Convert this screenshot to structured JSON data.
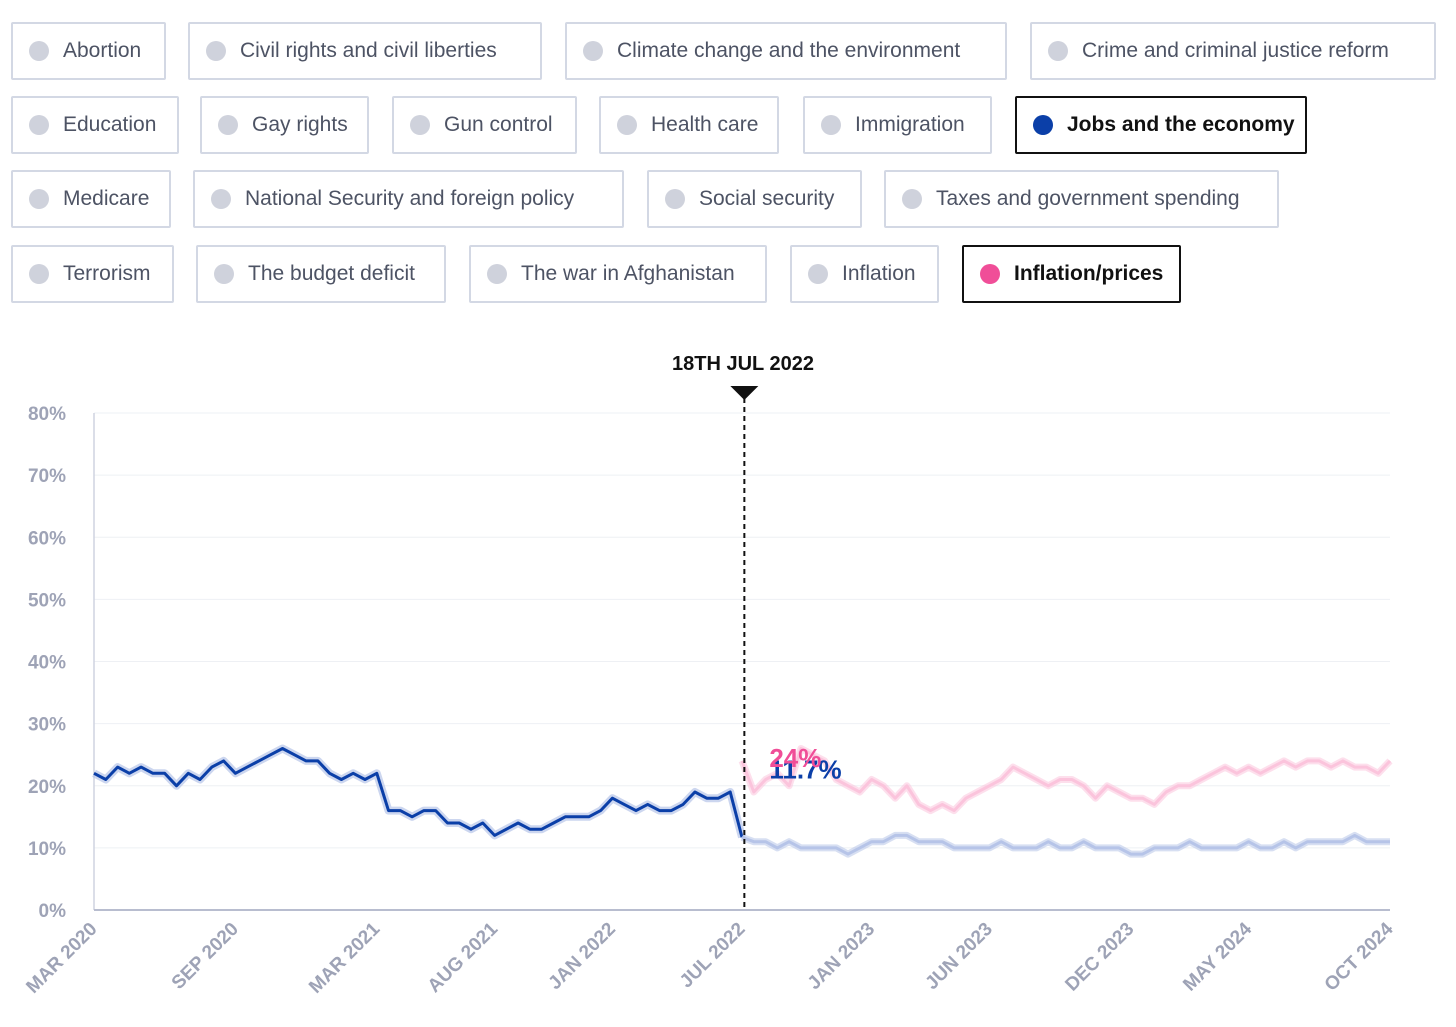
{
  "filters": [
    {
      "label": "Abortion",
      "active": false
    },
    {
      "label": "Civil rights and civil liberties",
      "active": false
    },
    {
      "label": "Climate change and the environment",
      "active": false
    },
    {
      "label": "Crime and criminal justice reform",
      "active": false
    },
    {
      "label": "Education",
      "active": false
    },
    {
      "label": "Gay rights",
      "active": false
    },
    {
      "label": "Gun control",
      "active": false
    },
    {
      "label": "Health care",
      "active": false
    },
    {
      "label": "Immigration",
      "active": false
    },
    {
      "label": "Jobs and the economy",
      "active": true,
      "color": "#0b3fa8"
    },
    {
      "label": "Medicare",
      "active": false
    },
    {
      "label": "National Security and foreign policy",
      "active": false
    },
    {
      "label": "Social security",
      "active": false
    },
    {
      "label": "Taxes and government spending",
      "active": false
    },
    {
      "label": "Terrorism",
      "active": false
    },
    {
      "label": "The budget deficit",
      "active": false
    },
    {
      "label": "The war in Afghanistan",
      "active": false
    },
    {
      "label": "Inflation",
      "active": false
    },
    {
      "label": "Inflation/prices",
      "active": true,
      "color": "#f04e98"
    }
  ],
  "chart_data": {
    "type": "line",
    "x_unit": "months since Mar 2020",
    "x_range": [
      0,
      55
    ],
    "ylim": [
      0,
      80
    ],
    "yticks": [
      0,
      10,
      20,
      30,
      40,
      50,
      60,
      70,
      80
    ],
    "ytick_labels": [
      "0%",
      "10%",
      "20%",
      "30%",
      "40%",
      "50%",
      "60%",
      "70%",
      "80%"
    ],
    "xtick_labels": [
      "MAR 2020",
      "SEP 2020",
      "MAR 2021",
      "AUG 2021",
      "JAN 2022",
      "JUL 2022",
      "JAN 2023",
      "JUN 2023",
      "DEC 2023",
      "MAY 2024",
      "OCT 2024"
    ],
    "xtick_positions": [
      0,
      6,
      12,
      17,
      22,
      27.5,
      33,
      38,
      44,
      49,
      55
    ],
    "marker": {
      "x": 27.6,
      "label": "18TH JUL 2022"
    },
    "series": [
      {
        "name": "Jobs and the economy",
        "color": "#0b3fa8",
        "faded_color": "#b6c4e8",
        "value_label": "11.7%",
        "x": [
          0,
          0.5,
          1,
          1.5,
          2,
          2.5,
          3,
          3.5,
          4,
          4.5,
          5,
          5.5,
          6,
          6.5,
          7,
          7.5,
          8,
          8.5,
          9,
          9.5,
          10,
          10.5,
          11,
          11.5,
          12,
          12.5,
          13,
          13.5,
          14,
          14.5,
          15,
          15.5,
          16,
          16.5,
          17,
          17.5,
          18,
          18.5,
          19,
          19.5,
          20,
          20.5,
          21,
          21.5,
          22,
          22.5,
          23,
          23.5,
          24,
          24.5,
          25,
          25.5,
          26,
          26.5,
          27,
          27.5,
          28,
          28.5,
          29,
          29.5,
          30,
          30.5,
          31,
          31.5,
          32,
          32.5,
          33,
          33.5,
          34,
          34.5,
          35,
          35.5,
          36,
          36.5,
          37,
          37.5,
          38,
          38.5,
          39,
          39.5,
          40,
          40.5,
          41,
          41.5,
          42,
          42.5,
          43,
          43.5,
          44,
          44.5,
          45,
          45.5,
          46,
          46.5,
          47,
          47.5,
          48,
          48.5,
          49,
          49.5,
          50,
          50.5,
          51,
          51.5,
          52,
          52.5,
          53,
          53.5,
          54,
          54.5,
          55
        ],
        "y": [
          22,
          21,
          23,
          22,
          23,
          22,
          22,
          20,
          22,
          21,
          23,
          24,
          22,
          23,
          24,
          25,
          26,
          25,
          24,
          24,
          22,
          21,
          22,
          21,
          22,
          16,
          16,
          15,
          16,
          16,
          14,
          14,
          13,
          14,
          12,
          13,
          14,
          13,
          13,
          14,
          15,
          15,
          15,
          16,
          18,
          17,
          16,
          17,
          16,
          16,
          17,
          19,
          18,
          18,
          19,
          11.7,
          11,
          11,
          10,
          11,
          10,
          10,
          10,
          10,
          9,
          10,
          11,
          11,
          12,
          12,
          11,
          11,
          11,
          10,
          10,
          10,
          10,
          11,
          10,
          10,
          10,
          11,
          10,
          10,
          11,
          10,
          10,
          10,
          9,
          9,
          10,
          10,
          10,
          11,
          10,
          10,
          10,
          10,
          11,
          10,
          10,
          11,
          10,
          11,
          11,
          11,
          11,
          12,
          11,
          11,
          11
        ]
      },
      {
        "name": "Inflation/prices",
        "color": "#f04e98",
        "faded_color": "#fbc4dc",
        "value_label": "24%",
        "x": [
          27.5,
          28,
          28.5,
          29,
          29.5,
          30,
          30.5,
          31,
          31.5,
          32,
          32.5,
          33,
          33.5,
          34,
          34.5,
          35,
          35.5,
          36,
          36.5,
          37,
          37.5,
          38,
          38.5,
          39,
          39.5,
          40,
          40.5,
          41,
          41.5,
          42,
          42.5,
          43,
          43.5,
          44,
          44.5,
          45,
          45.5,
          46,
          46.5,
          47,
          47.5,
          48,
          48.5,
          49,
          49.5,
          50,
          50.5,
          51,
          51.5,
          52,
          52.5,
          53,
          53.5,
          54,
          54.5,
          55
        ],
        "y": [
          24,
          19,
          21,
          22,
          20,
          26,
          25,
          24,
          21,
          20,
          19,
          21,
          20,
          18,
          20,
          17,
          16,
          17,
          16,
          18,
          19,
          20,
          21,
          23,
          22,
          21,
          20,
          21,
          21,
          20,
          18,
          20,
          19,
          18,
          18,
          17,
          19,
          20,
          20,
          21,
          22,
          23,
          22,
          23,
          22,
          23,
          24,
          23,
          24,
          24,
          23,
          24,
          23,
          23,
          22,
          24
        ]
      }
    ]
  }
}
